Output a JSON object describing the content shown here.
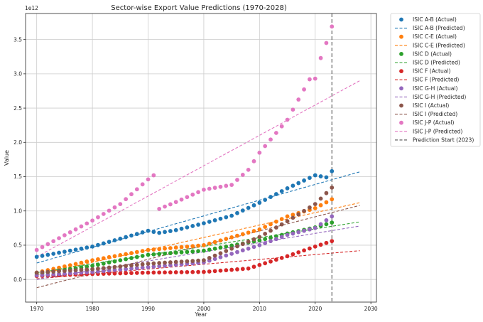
{
  "chart_data": {
    "type": "scatter",
    "title": "Sector-wise Export Value Predictions (1970-2028)",
    "xlabel": "Year",
    "ylabel": "Value",
    "y_offset_label": "1e12",
    "xlim": [
      1968,
      2031
    ],
    "ylim": [
      -0.33,
      3.88
    ],
    "x_ticks": [
      1970,
      1980,
      1990,
      2000,
      2010,
      2020,
      2030
    ],
    "y_ticks": [
      0.0,
      0.5,
      1.0,
      1.5,
      2.0,
      2.5,
      3.0,
      3.5
    ],
    "y_tick_labels": [
      "0.0",
      "0.5",
      "1.0",
      "1.5",
      "2.0",
      "2.5",
      "3.0",
      "3.5"
    ],
    "grid": true,
    "legend_position": "outside-right",
    "prediction_start": {
      "label": "Prediction Start (2023)",
      "year": 2023,
      "color": "#555555"
    },
    "series": [
      {
        "name": "ISIC A-B",
        "color": "#1f77b4",
        "actual_label": "ISIC A-B (Actual)",
        "predicted_label": "ISIC A-B (Predicted)",
        "keys": [
          [
            1970,
            0.33
          ],
          [
            1980,
            0.48
          ],
          [
            1990,
            0.71
          ],
          [
            1992,
            0.68
          ],
          [
            1995,
            0.72
          ],
          [
            2000,
            0.82
          ],
          [
            2005,
            0.93
          ],
          [
            2010,
            1.12
          ],
          [
            2015,
            1.33
          ],
          [
            2020,
            1.52
          ],
          [
            2022,
            1.49
          ],
          [
            2023,
            1.58
          ]
        ],
        "predicted": [
          [
            1970,
            0.24
          ],
          [
            2028,
            1.57
          ]
        ]
      },
      {
        "name": "ISIC C-E",
        "color": "#ff7f0e",
        "actual_label": "ISIC C-E (Actual)",
        "predicted_label": "ISIC C-E (Predicted)",
        "keys": [
          [
            1970,
            0.1
          ],
          [
            1980,
            0.28
          ],
          [
            1990,
            0.43
          ],
          [
            2000,
            0.5
          ],
          [
            2010,
            0.73
          ],
          [
            2015,
            0.92
          ],
          [
            2020,
            1.04
          ],
          [
            2023,
            1.17
          ]
        ],
        "predicted": [
          [
            1970,
            0.07
          ],
          [
            2028,
            1.12
          ]
        ]
      },
      {
        "name": "ISIC D",
        "color": "#2ca02c",
        "actual_label": "ISIC D (Actual)",
        "predicted_label": "ISIC D (Predicted)",
        "keys": [
          [
            1970,
            0.08
          ],
          [
            1980,
            0.2
          ],
          [
            1990,
            0.36
          ],
          [
            2000,
            0.42
          ],
          [
            2010,
            0.57
          ],
          [
            2015,
            0.67
          ],
          [
            2020,
            0.76
          ],
          [
            2023,
            0.83
          ]
        ],
        "predicted": [
          [
            1970,
            0.1
          ],
          [
            2028,
            0.84
          ]
        ]
      },
      {
        "name": "ISIC F",
        "color": "#d62728",
        "actual_label": "ISIC F (Actual)",
        "predicted_label": "ISIC F (Predicted)",
        "keys": [
          [
            1970,
            0.05
          ],
          [
            1980,
            0.08
          ],
          [
            1990,
            0.1
          ],
          [
            2000,
            0.11
          ],
          [
            2008,
            0.16
          ],
          [
            2015,
            0.34
          ],
          [
            2020,
            0.48
          ],
          [
            2023,
            0.56
          ]
        ],
        "predicted": [
          [
            1970,
            0.01
          ],
          [
            2028,
            0.42
          ]
        ]
      },
      {
        "name": "ISIC G-H",
        "color": "#9467bd",
        "actual_label": "ISIC G-H (Actual)",
        "predicted_label": "ISIC G-H (Predicted)",
        "keys": [
          [
            1970,
            0.06
          ],
          [
            1980,
            0.11
          ],
          [
            1990,
            0.18
          ],
          [
            2000,
            0.25
          ],
          [
            2010,
            0.5
          ],
          [
            2015,
            0.65
          ],
          [
            2020,
            0.75
          ],
          [
            2023,
            0.92
          ]
        ],
        "predicted": [
          [
            1970,
            0.0
          ],
          [
            2028,
            0.78
          ]
        ]
      },
      {
        "name": "ISIC I",
        "color": "#8c564b",
        "actual_label": "ISIC I (Actual)",
        "predicted_label": "ISIC I (Predicted)",
        "keys": [
          [
            1970,
            0.1
          ],
          [
            1980,
            0.15
          ],
          [
            1990,
            0.23
          ],
          [
            2000,
            0.28
          ],
          [
            2010,
            0.62
          ],
          [
            2015,
            0.85
          ],
          [
            2020,
            1.1
          ],
          [
            2023,
            1.34
          ]
        ],
        "predicted": [
          [
            1970,
            -0.12
          ],
          [
            2028,
            1.08
          ]
        ]
      },
      {
        "name": "ISIC J-P",
        "color": "#e377c2",
        "actual_label": "ISIC J-P (Actual)",
        "predicted_label": "ISIC J-P (Predicted)",
        "keys": [
          [
            1970,
            0.43
          ],
          [
            1980,
            0.86
          ],
          [
            1985,
            1.1
          ],
          [
            1990,
            1.46
          ],
          [
            1991,
            1.52
          ],
          [
            1992,
            1.03
          ],
          [
            1995,
            1.13
          ],
          [
            2000,
            1.31
          ],
          [
            2005,
            1.38
          ],
          [
            2008,
            1.6
          ],
          [
            2010,
            1.85
          ],
          [
            2015,
            2.33
          ],
          [
            2019,
            2.92
          ],
          [
            2020,
            2.93
          ],
          [
            2021,
            3.23
          ],
          [
            2022,
            3.45
          ],
          [
            2023,
            3.69
          ]
        ],
        "predicted": [
          [
            1970,
            0.33
          ],
          [
            2028,
            2.9
          ]
        ]
      }
    ]
  }
}
